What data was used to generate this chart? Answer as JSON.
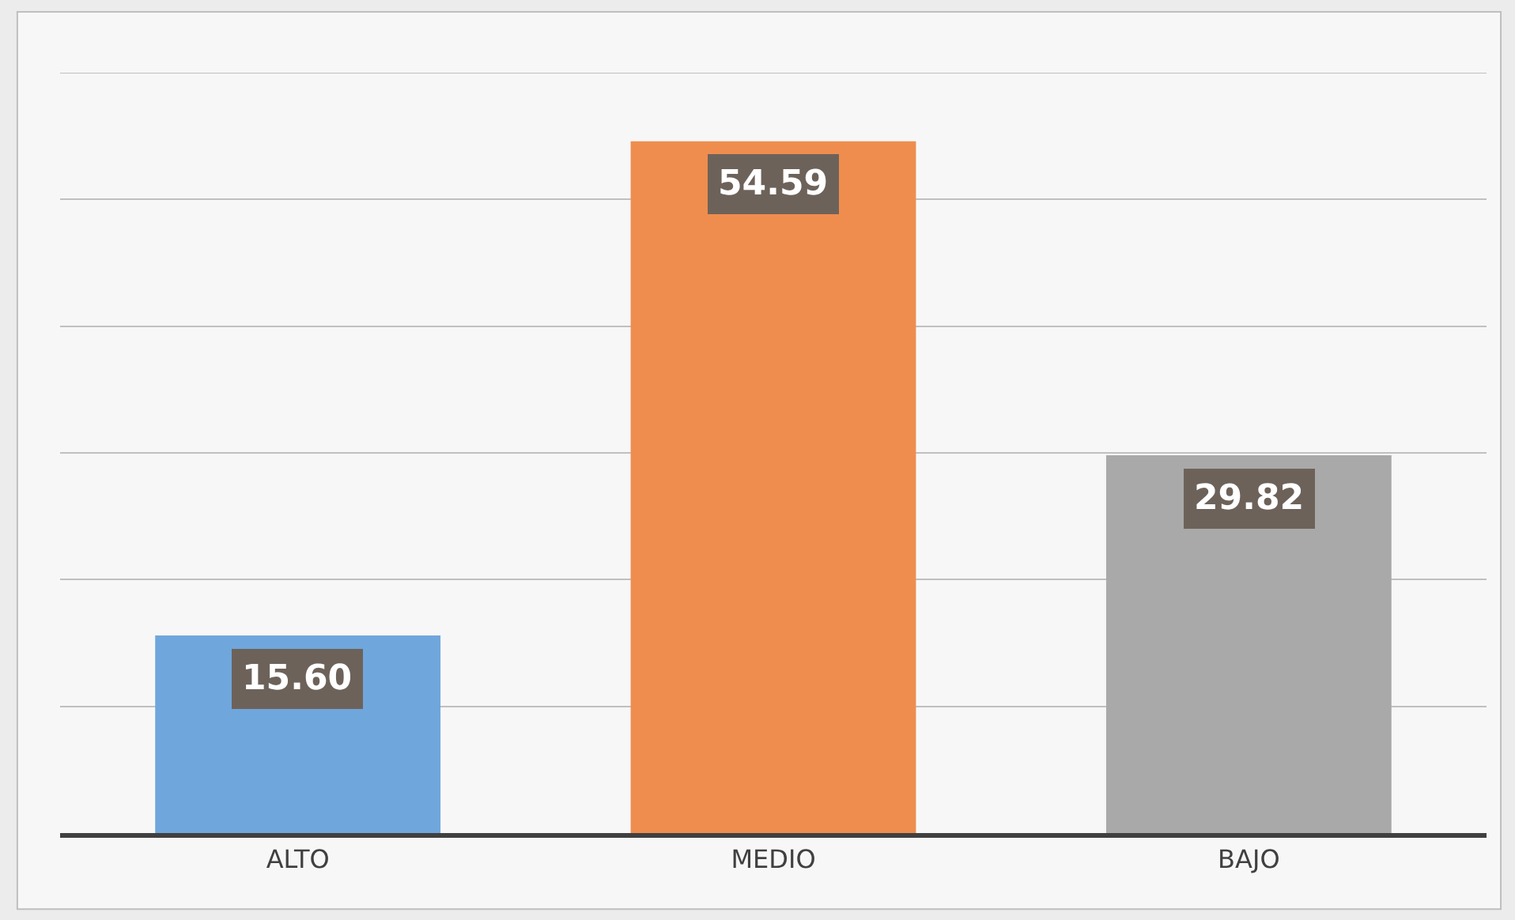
{
  "chart_data": {
    "type": "bar",
    "categories": [
      "ALTO",
      "MEDIO",
      "BAJO"
    ],
    "values": [
      15.6,
      54.59,
      29.82
    ],
    "colors": [
      "#6fa6dc",
      "#ef8d4f",
      "#a9a9a9"
    ],
    "value_labels": [
      "15.60",
      "54.59",
      "29.82"
    ],
    "ylim": [
      0,
      60
    ],
    "yticks": [
      {
        "value": 0,
        "label": null
      },
      {
        "value": 10,
        "label": null
      },
      {
        "value": 20,
        "label": null
      },
      {
        "value": 30,
        "label": null
      },
      {
        "value": 40,
        "label": null
      },
      {
        "value": 50,
        "label": null
      },
      {
        "value": 60,
        "label": null
      }
    ],
    "tick_labels": "x",
    "grid": "y"
  }
}
